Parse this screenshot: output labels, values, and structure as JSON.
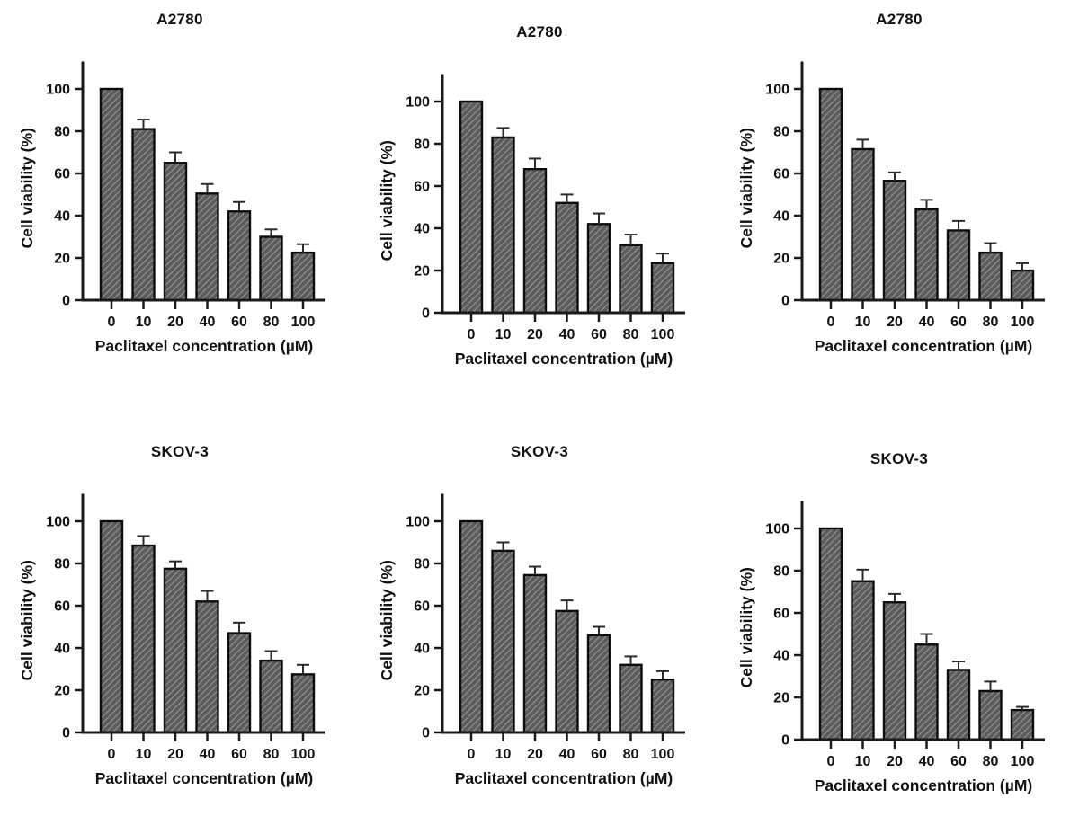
{
  "page": {
    "background": "#ffffff"
  },
  "style": {
    "bar_fill": "#5c5c5c",
    "bar_hatch_line": "#a8a8a8",
    "bar_border": "#0d0d0d",
    "axis_color": "#1a1a1a",
    "error_bar_color": "#2b2b2b",
    "text_color": "#111111"
  },
  "chart_data": [
    {
      "type": "bar",
      "title": "A2780",
      "xlabel": "Paclitaxel concentration (µM)",
      "ylabel": "Cell viability (%)",
      "categories": [
        "0",
        "10",
        "20",
        "40",
        "60",
        "80",
        "100"
      ],
      "values": [
        100,
        81,
        65,
        50.5,
        42,
        30,
        22.5
      ],
      "errors": [
        0,
        4.5,
        5,
        4.5,
        4.5,
        3.5,
        4
      ],
      "ylim": [
        0,
        110
      ],
      "yticks": [
        0,
        20,
        40,
        60,
        80,
        100
      ],
      "grid": false,
      "legend": "none"
    },
    {
      "type": "bar",
      "title": "A2780",
      "xlabel": "Paclitaxel concentration (µM)",
      "ylabel": "Cell viability (%)",
      "categories": [
        "0",
        "10",
        "20",
        "40",
        "60",
        "80",
        "100"
      ],
      "values": [
        100,
        83,
        68,
        52,
        42,
        32,
        23.5
      ],
      "errors": [
        0,
        4.5,
        5,
        4,
        5,
        5,
        4.5
      ],
      "ylim": [
        0,
        110
      ],
      "yticks": [
        0,
        20,
        40,
        60,
        80,
        100
      ],
      "grid": false,
      "legend": "none"
    },
    {
      "type": "bar",
      "title": "A2780",
      "xlabel": "Paclitaxel concentration (µM)",
      "ylabel": "Cell viability (%)",
      "categories": [
        "0",
        "10",
        "20",
        "40",
        "60",
        "80",
        "100"
      ],
      "values": [
        100,
        71.5,
        56.5,
        43,
        33,
        22.5,
        14
      ],
      "errors": [
        0,
        4.5,
        4,
        4.5,
        4.5,
        4.5,
        3.5
      ],
      "ylim": [
        0,
        110
      ],
      "yticks": [
        0,
        20,
        40,
        60,
        80,
        100
      ],
      "grid": false,
      "legend": "none"
    },
    {
      "type": "bar",
      "title": "SKOV-3",
      "xlabel": "Paclitaxel concentration (µM)",
      "ylabel": "Cell viability (%)",
      "categories": [
        "0",
        "10",
        "20",
        "40",
        "60",
        "80",
        "100"
      ],
      "values": [
        100,
        88.5,
        77.5,
        62,
        47,
        34,
        27.5
      ],
      "errors": [
        0,
        4.5,
        3.5,
        5,
        5,
        4.5,
        4.5
      ],
      "ylim": [
        0,
        110
      ],
      "yticks": [
        0,
        20,
        40,
        60,
        80,
        100
      ],
      "grid": false,
      "legend": "none"
    },
    {
      "type": "bar",
      "title": "SKOV-3",
      "xlabel": "Paclitaxel concentration (µM)",
      "ylabel": "Cell viability (%)",
      "categories": [
        "0",
        "10",
        "20",
        "40",
        "60",
        "80",
        "100"
      ],
      "values": [
        100,
        86,
        74.5,
        57.5,
        46,
        32,
        25
      ],
      "errors": [
        0,
        4,
        4,
        5,
        4,
        4,
        4
      ],
      "ylim": [
        0,
        110
      ],
      "yticks": [
        0,
        20,
        40,
        60,
        80,
        100
      ],
      "grid": false,
      "legend": "none"
    },
    {
      "type": "bar",
      "title": "SKOV-3",
      "xlabel": "Paclitaxel concentration (µM)",
      "ylabel": "Cell viability (%)",
      "categories": [
        "0",
        "10",
        "20",
        "40",
        "60",
        "80",
        "100"
      ],
      "values": [
        100,
        75,
        65,
        45,
        33,
        23,
        14
      ],
      "errors": [
        0,
        5.5,
        4,
        5,
        4,
        4.5,
        1.5
      ],
      "ylim": [
        0,
        110
      ],
      "yticks": [
        0,
        20,
        40,
        60,
        80,
        100
      ],
      "grid": false,
      "legend": "none"
    }
  ]
}
